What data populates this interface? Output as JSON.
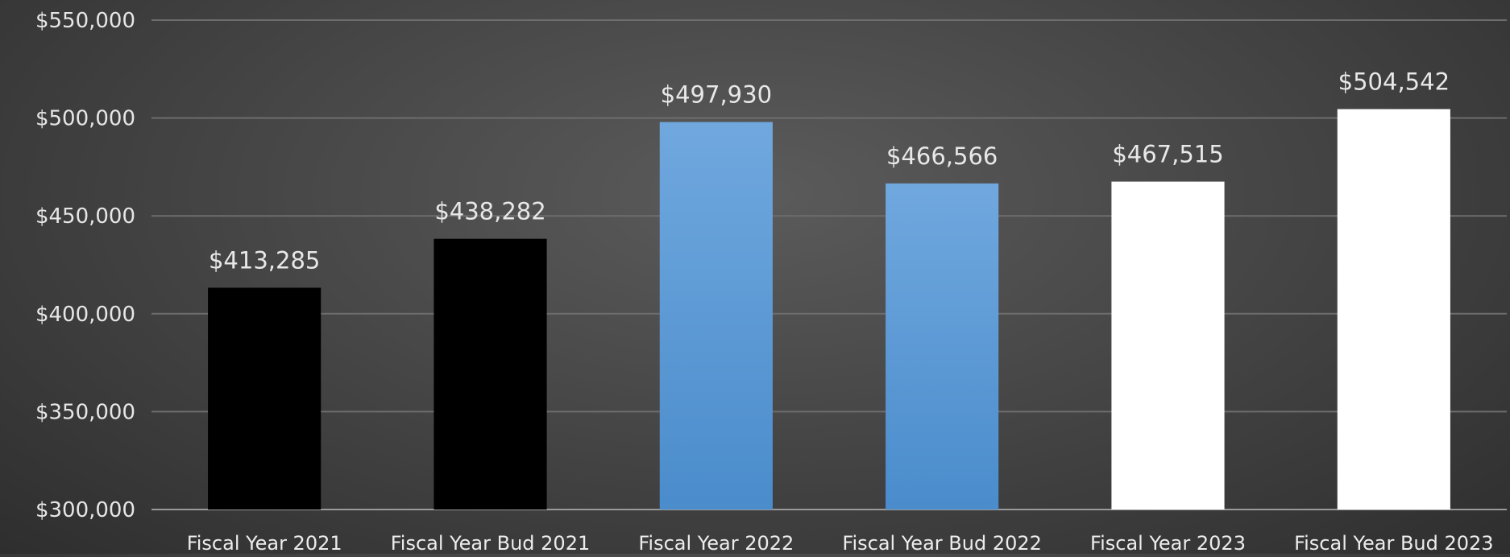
{
  "chart_data": {
    "type": "bar",
    "title": "",
    "xlabel": "",
    "ylabel": "",
    "categories": [
      "Fiscal Year 2021",
      "Fiscal Year Bud 2021",
      "Fiscal Year 2022",
      "Fiscal Year Bud 2022",
      "Fiscal Year 2023",
      "Fiscal Year Bud 2023"
    ],
    "values": [
      413285,
      438282,
      497930,
      466566,
      467515,
      504542
    ],
    "value_labels": [
      "$413,285",
      "$438,282",
      "$497,930",
      "$466,566",
      "$467,515",
      "$504,542"
    ],
    "bar_colors": [
      "#000000",
      "#000000",
      "#5b9bd5",
      "#5b9bd5",
      "#ffffff",
      "#ffffff"
    ],
    "ylim": [
      300000,
      550000
    ],
    "y_ticks": [
      300000,
      350000,
      400000,
      450000,
      500000,
      550000
    ],
    "y_tick_labels": [
      "$300,000",
      "$350,000",
      "$400,000",
      "$450,000",
      "$500,000",
      "$550,000"
    ],
    "grid": true,
    "legend": "none"
  }
}
